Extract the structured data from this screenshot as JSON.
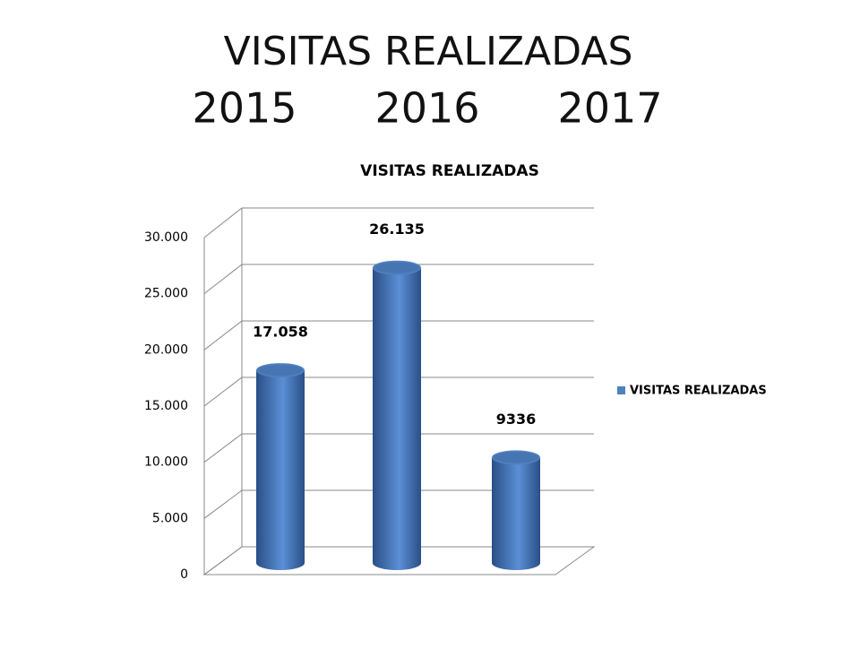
{
  "slide": {
    "title": "VISITAS REALIZADAS",
    "years": [
      "2015",
      "2016",
      "2017"
    ]
  },
  "chart_data": {
    "type": "bar",
    "title": "VISITAS REALIZADAS",
    "categories": [
      null,
      null,
      null
    ],
    "series": [
      {
        "name": "VISITAS REALIZADAS",
        "color": "#4f81bd",
        "values": [
          17058,
          26135,
          9336
        ],
        "value_labels": [
          "17.058",
          "26.135",
          "9336"
        ]
      }
    ],
    "ylim": [
      0,
      30000
    ],
    "yticks": [
      0,
      {
        "value": 5000,
        "label": "5.000"
      },
      {
        "value": 10000,
        "label": "10.000"
      },
      {
        "value": 15000,
        "label": "15.000"
      },
      {
        "value": 20000,
        "label": "20.000"
      },
      {
        "value": 25000,
        "label": "25.000"
      },
      {
        "value": 30000,
        "label": "30.000"
      }
    ],
    "grid": true,
    "legend": "right"
  }
}
